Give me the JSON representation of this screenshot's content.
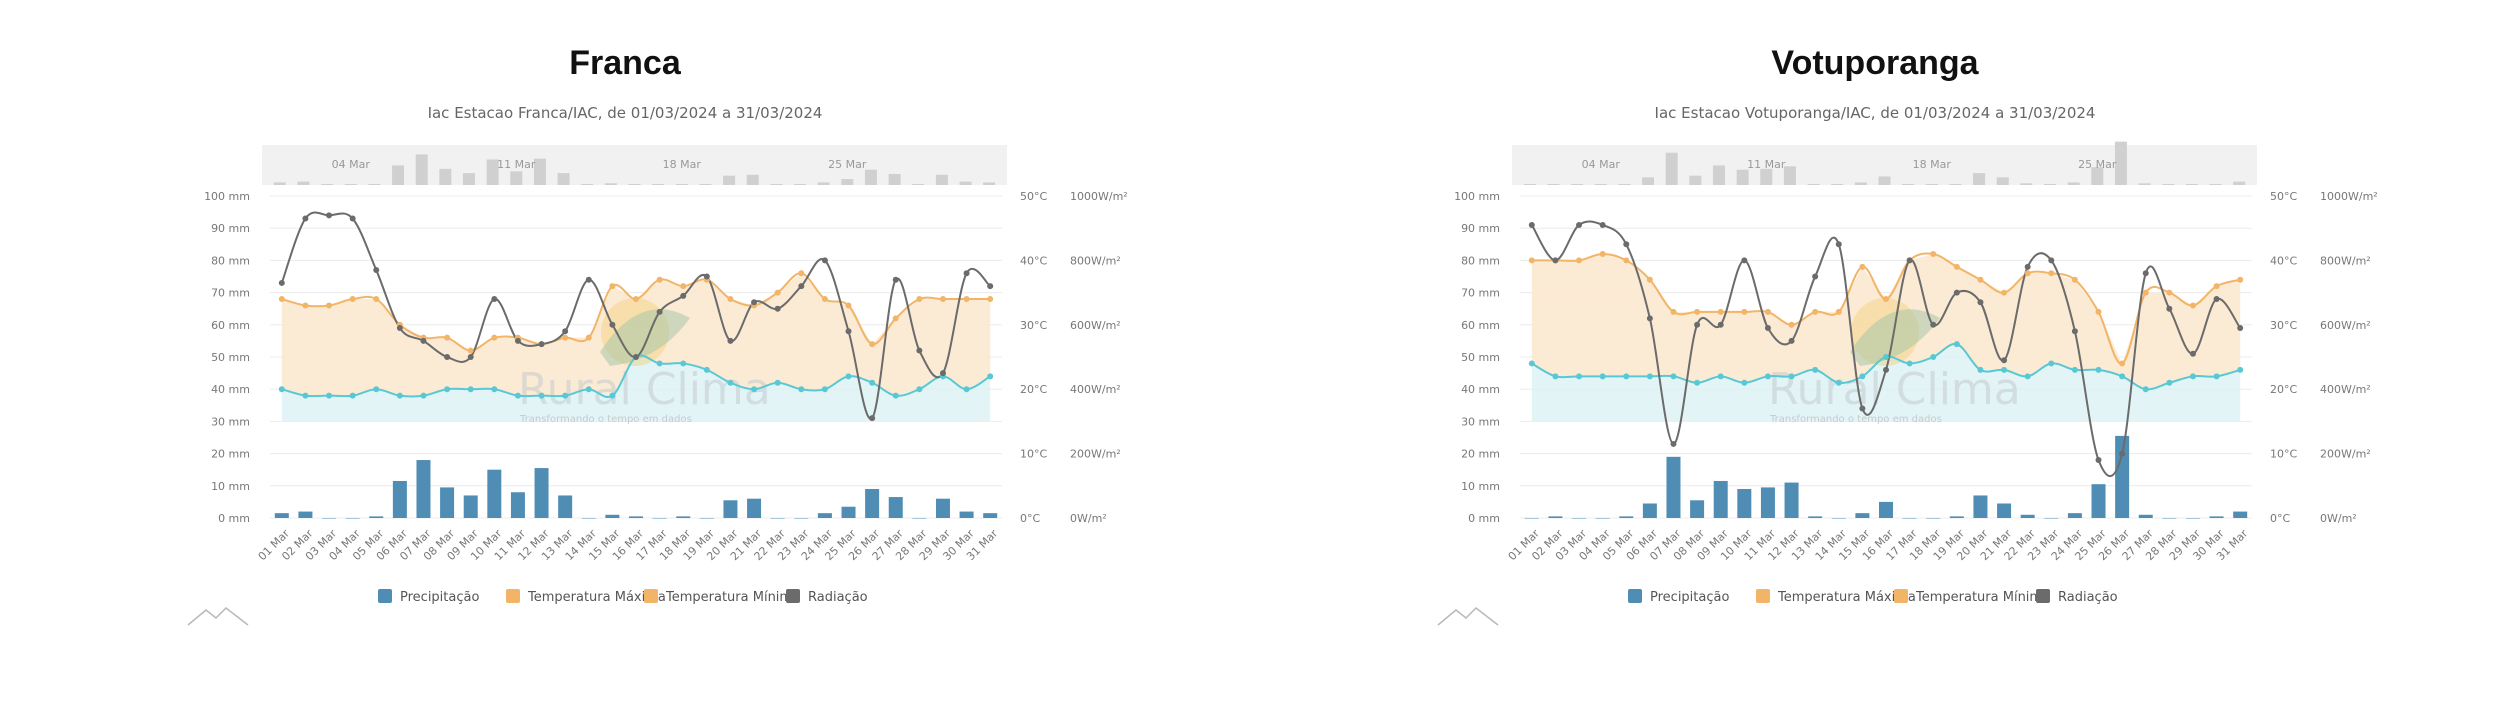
{
  "panels": [
    {
      "title": "Franca"
    },
    {
      "title": "Votuporanga"
    }
  ],
  "colors": {
    "precip": "#4f8db5",
    "tmax": "#f2b467",
    "tmin": "#58c8d4",
    "rad": "#6b6b6b",
    "area_warm": "#fbe7cc",
    "area_cool": "#dbf1f3"
  },
  "chart_data": [
    {
      "type": "bar",
      "subtitle": "Iac Estacao Franca/IAC, de 01/03/2024 a 31/03/2024",
      "watermark": "Rural Clima",
      "watermark_sub": "Transformando o tempo em dados",
      "navigator_labels": [
        "04 Mar",
        "11 Mar",
        "18 Mar",
        "25 Mar"
      ],
      "categories": [
        "01 Mar",
        "02 Mar",
        "03 Mar",
        "04 Mar",
        "05 Mar",
        "06 Mar",
        "07 Mar",
        "08 Mar",
        "09 Mar",
        "10 Mar",
        "11 Mar",
        "12 Mar",
        "13 Mar",
        "14 Mar",
        "15 Mar",
        "16 Mar",
        "17 Mar",
        "18 Mar",
        "19 Mar",
        "20 Mar",
        "21 Mar",
        "22 Mar",
        "23 Mar",
        "24 Mar",
        "25 Mar",
        "26 Mar",
        "27 Mar",
        "28 Mar",
        "29 Mar",
        "30 Mar",
        "31 Mar"
      ],
      "axes": {
        "precip": {
          "min": 0,
          "max": 100,
          "ticks": [
            "0 mm",
            "10 mm",
            "20 mm",
            "30 mm",
            "40 mm",
            "50 mm",
            "60 mm",
            "70 mm",
            "80 mm",
            "90 mm",
            "100 mm"
          ]
        },
        "temp": {
          "min": 0,
          "max": 50,
          "ticks": [
            "0°C",
            "10°C",
            "20°C",
            "30°C",
            "40°C",
            "50°C"
          ]
        },
        "rad": {
          "min": 0,
          "max": 1000,
          "ticks": [
            "0W/m²",
            "200W/m²",
            "400W/m²",
            "600W/m²",
            "800W/m²",
            "1000W/m²"
          ]
        }
      },
      "legend": [
        "Precipitação",
        "Temperatura Máxima",
        "Temperatura Mínima",
        "Radiação"
      ],
      "series": [
        {
          "name": "Precipitação",
          "axis": "precip",
          "values": [
            1.5,
            2,
            0,
            0,
            0.5,
            11.5,
            18,
            9.5,
            7,
            15,
            8,
            15.5,
            7,
            0,
            1,
            0.5,
            0,
            0.5,
            0,
            5.5,
            6,
            0,
            0,
            1.5,
            3.5,
            9,
            6.5,
            0,
            6,
            2,
            1.5
          ]
        },
        {
          "name": "Temperatura Máxima",
          "axis": "temp",
          "values": [
            34,
            33,
            33,
            34,
            34,
            30,
            28,
            28,
            26,
            28,
            28,
            27,
            28,
            28,
            36,
            34,
            37,
            36,
            37,
            34,
            33,
            35,
            38,
            34,
            33,
            27,
            31,
            34,
            34,
            34,
            34
          ]
        },
        {
          "name": "Temperatura Mínima",
          "axis": "temp",
          "values": [
            20,
            19,
            19,
            19,
            20,
            19,
            19,
            20,
            20,
            20,
            19,
            19,
            19,
            20,
            19,
            25,
            24,
            24,
            23,
            21,
            20,
            21,
            20,
            20,
            22,
            21,
            19,
            20,
            22,
            20,
            22
          ]
        },
        {
          "name": "Radiação",
          "axis": "rad",
          "values": [
            730,
            930,
            940,
            930,
            770,
            590,
            550,
            500,
            500,
            680,
            550,
            540,
            580,
            740,
            600,
            500,
            640,
            690,
            750,
            550,
            670,
            650,
            720,
            800,
            580,
            310,
            740,
            520,
            450,
            760,
            720
          ]
        }
      ]
    },
    {
      "type": "bar",
      "subtitle": "Iac Estacao Votuporanga/IAC, de 01/03/2024 a 31/03/2024",
      "watermark": "Rural Clima",
      "watermark_sub": "Transformando o tempo em dados",
      "navigator_labels": [
        "04 Mar",
        "11 Mar",
        "18 Mar",
        "25 Mar"
      ],
      "categories": [
        "01 Mar",
        "02 Mar",
        "03 Mar",
        "04 Mar",
        "05 Mar",
        "06 Mar",
        "07 Mar",
        "08 Mar",
        "09 Mar",
        "10 Mar",
        "11 Mar",
        "12 Mar",
        "13 Mar",
        "14 Mar",
        "15 Mar",
        "16 Mar",
        "17 Mar",
        "18 Mar",
        "19 Mar",
        "20 Mar",
        "21 Mar",
        "22 Mar",
        "23 Mar",
        "24 Mar",
        "25 Mar",
        "26 Mar",
        "27 Mar",
        "28 Mar",
        "29 Mar",
        "30 Mar",
        "31 Mar"
      ],
      "axes": {
        "precip": {
          "min": 0,
          "max": 100,
          "ticks": [
            "0 mm",
            "10 mm",
            "20 mm",
            "30 mm",
            "40 mm",
            "50 mm",
            "60 mm",
            "70 mm",
            "80 mm",
            "90 mm",
            "100 mm"
          ]
        },
        "temp": {
          "min": 0,
          "max": 50,
          "ticks": [
            "0°C",
            "10°C",
            "20°C",
            "30°C",
            "40°C",
            "50°C"
          ]
        },
        "rad": {
          "min": 0,
          "max": 1000,
          "ticks": [
            "0W/m²",
            "200W/m²",
            "400W/m²",
            "600W/m²",
            "800W/m²",
            "1000W/m²"
          ]
        }
      },
      "legend": [
        "Precipitação",
        "Temperatura Máxima",
        "Temperatura Mínima",
        "Radiação"
      ],
      "series": [
        {
          "name": "Precipitação",
          "axis": "precip",
          "values": [
            0,
            0.5,
            0,
            0,
            0.5,
            4.5,
            19,
            5.5,
            11.5,
            9,
            9.5,
            11,
            0.5,
            0,
            1.5,
            5,
            0,
            0,
            0.5,
            7,
            4.5,
            1,
            0,
            1.5,
            10.5,
            25.5,
            1,
            0,
            0,
            0.5,
            2
          ]
        },
        {
          "name": "Temperatura Máxima",
          "axis": "temp",
          "values": [
            40,
            40,
            40,
            41,
            40,
            37,
            32,
            32,
            32,
            32,
            32,
            30,
            32,
            32,
            39,
            34,
            40,
            41,
            39,
            37,
            35,
            38,
            38,
            37,
            32,
            24,
            35,
            35,
            33,
            36,
            37
          ]
        },
        {
          "name": "Temperatura Mínima",
          "axis": "temp",
          "values": [
            24,
            22,
            22,
            22,
            22,
            22,
            22,
            21,
            22,
            21,
            22,
            22,
            23,
            21,
            22,
            25,
            24,
            25,
            27,
            23,
            23,
            22,
            24,
            23,
            23,
            22,
            20,
            21,
            22,
            22,
            23
          ]
        },
        {
          "name": "Radiação",
          "axis": "rad",
          "values": [
            910,
            800,
            910,
            910,
            850,
            620,
            230,
            600,
            600,
            800,
            590,
            550,
            750,
            850,
            340,
            460,
            800,
            600,
            700,
            670,
            490,
            780,
            800,
            580,
            180,
            200,
            760,
            650,
            510,
            680,
            590
          ]
        }
      ]
    }
  ]
}
